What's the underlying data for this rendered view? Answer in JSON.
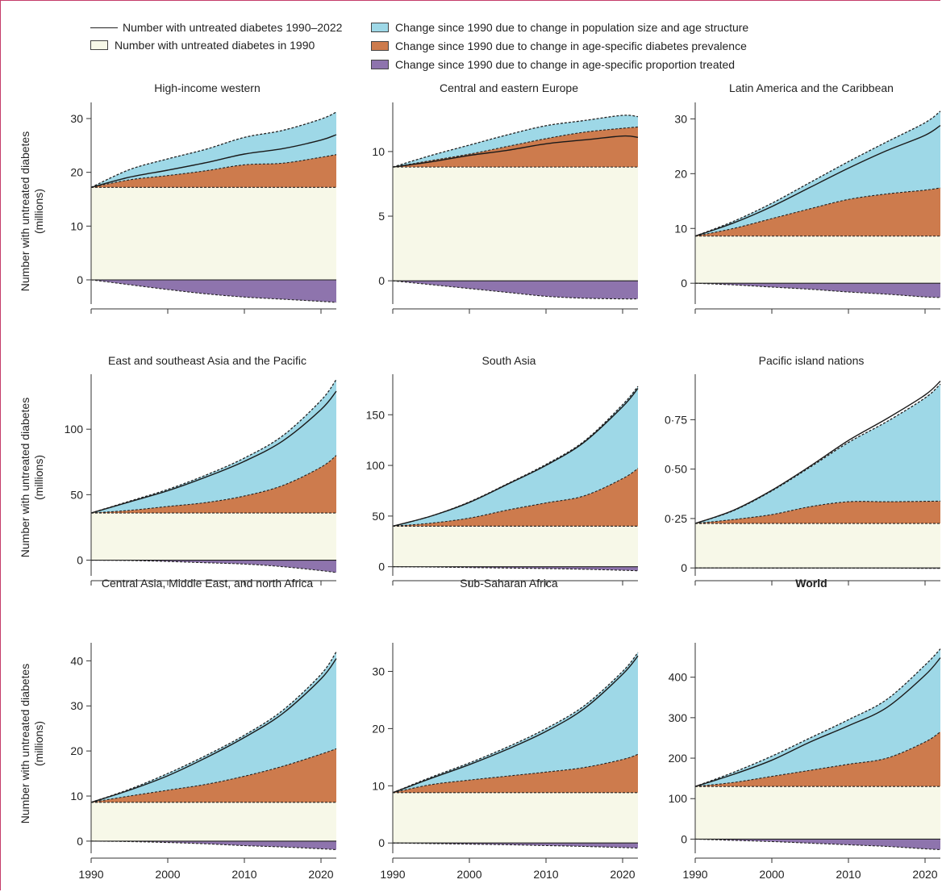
{
  "colors": {
    "baseline": "#f7f8e8",
    "population": "#9ed8e7",
    "prevalence": "#cd7b4d",
    "treated": "#8e74ad",
    "line": "#1a1a1a",
    "frame": "#c43d6a"
  },
  "legend": {
    "line_label": "Number with untreated diabetes 1990–2022",
    "baseline_label": "Number with untreated diabetes in 1990",
    "population_label": "Change since 1990 due to change in population size and age structure",
    "prevalence_label": "Change since 1990 due to change in age-specific diabetes prevalence",
    "treated_label": "Change since 1990 due to change in age-specific proportion treated"
  },
  "y_axis_title": [
    "Number with untreated diabetes",
    "(millions)"
  ],
  "chart_data": [
    {
      "type": "area",
      "title": "High-income western",
      "bold": false,
      "ylim": [
        -4.5,
        33
      ],
      "yticks": [
        0,
        10,
        20,
        30
      ],
      "ytick_labels": [
        "0",
        "10",
        "20",
        "30"
      ],
      "xlim": [
        1990,
        2022
      ],
      "xticks": [
        1990,
        2000,
        2010,
        2020
      ],
      "xtick_labels": [],
      "years": [
        1990,
        1995,
        2000,
        2005,
        2010,
        2015,
        2020,
        2022
      ],
      "baseline": 17.2,
      "prevalence_top": [
        17.2,
        18.6,
        19.4,
        20.3,
        21.4,
        21.7,
        22.8,
        23.3
      ],
      "total_top": [
        17.2,
        20.5,
        22.5,
        24.3,
        26.5,
        27.8,
        29.9,
        31.2
      ],
      "treated_bottom": [
        0,
        -0.9,
        -1.8,
        -2.6,
        -3.2,
        -3.6,
        -4.0,
        -4.2
      ],
      "untreated_line": [
        17.2,
        19.1,
        20.4,
        21.8,
        23.4,
        24.4,
        26.0,
        27.0
      ]
    },
    {
      "type": "area",
      "title": "Central and eastern Europe",
      "bold": false,
      "ylim": [
        -1.8,
        13.8
      ],
      "yticks": [
        0,
        5,
        10
      ],
      "ytick_labels": [
        "0",
        "5",
        "10"
      ],
      "xlim": [
        1990,
        2022
      ],
      "xticks": [
        1990,
        2000,
        2010,
        2020
      ],
      "xtick_labels": [],
      "years": [
        1990,
        1995,
        2000,
        2005,
        2010,
        2015,
        2020,
        2022
      ],
      "baseline": 8.8,
      "prevalence_top": [
        8.8,
        9.3,
        9.8,
        10.4,
        11.0,
        11.5,
        11.8,
        11.9
      ],
      "total_top": [
        8.8,
        9.7,
        10.5,
        11.3,
        12.0,
        12.4,
        12.8,
        12.7
      ],
      "treated_bottom": [
        0,
        -0.3,
        -0.6,
        -0.9,
        -1.2,
        -1.35,
        -1.4,
        -1.4
      ],
      "untreated_line": [
        8.8,
        9.2,
        9.7,
        10.1,
        10.6,
        10.9,
        11.2,
        11.1
      ]
    },
    {
      "type": "area",
      "title": "Latin America and the Caribbean",
      "bold": false,
      "ylim": [
        -3.8,
        33
      ],
      "yticks": [
        0,
        10,
        20,
        30
      ],
      "ytick_labels": [
        "0",
        "10",
        "20",
        "30"
      ],
      "xlim": [
        1990,
        2022
      ],
      "xticks": [
        1990,
        2000,
        2010,
        2020
      ],
      "xtick_labels": [],
      "years": [
        1990,
        1995,
        2000,
        2005,
        2010,
        2015,
        2020,
        2022
      ],
      "baseline": 8.6,
      "prevalence_top": [
        8.6,
        10.0,
        11.8,
        13.6,
        15.3,
        16.3,
        17.0,
        17.4
      ],
      "total_top": [
        8.6,
        11.3,
        14.6,
        18.4,
        22.2,
        25.8,
        29.3,
        31.4
      ],
      "treated_bottom": [
        0,
        -0.3,
        -0.7,
        -1.1,
        -1.6,
        -2.0,
        -2.5,
        -2.6
      ],
      "untreated_line": [
        8.6,
        11.0,
        14.0,
        17.5,
        21.0,
        24.2,
        27.0,
        28.8
      ]
    },
    {
      "type": "area",
      "title": "East and southeast Asia and the Pacific",
      "bold": false,
      "ylim": [
        -12,
        142
      ],
      "yticks": [
        0,
        50,
        100
      ],
      "ytick_labels": [
        "0",
        "50",
        "100"
      ],
      "xlim": [
        1990,
        2022
      ],
      "xticks": [
        1990,
        2000,
        2010,
        2020
      ],
      "xtick_labels": [],
      "years": [
        1990,
        1995,
        2000,
        2005,
        2010,
        2015,
        2020,
        2022
      ],
      "baseline": 36,
      "prevalence_top": [
        36,
        38,
        41,
        44,
        49,
        57,
        71,
        80
      ],
      "total_top": [
        36,
        45,
        54,
        65,
        78,
        95,
        122,
        138
      ],
      "treated_bottom": [
        0,
        -0.3,
        -1,
        -2,
        -3,
        -5,
        -8,
        -9.5
      ],
      "untreated_line": [
        36,
        44.5,
        53,
        63.5,
        75.5,
        91,
        115,
        129
      ]
    },
    {
      "type": "area",
      "title": "South Asia",
      "bold": false,
      "ylim": [
        -9,
        190
      ],
      "yticks": [
        0,
        50,
        100,
        150
      ],
      "ytick_labels": [
        "0",
        "50",
        "100",
        "150"
      ],
      "xlim": [
        1990,
        2022
      ],
      "xticks": [
        1990,
        2000,
        2010,
        2020
      ],
      "xtick_labels": [],
      "years": [
        1990,
        1995,
        2000,
        2005,
        2010,
        2015,
        2020,
        2022
      ],
      "baseline": 40,
      "prevalence_top": [
        40,
        43,
        48,
        56,
        63,
        70,
        87,
        97
      ],
      "total_top": [
        40,
        50,
        64,
        82,
        101,
        124,
        160,
        178
      ],
      "treated_bottom": [
        0,
        -0.3,
        -0.8,
        -1.3,
        -1.8,
        -2.5,
        -3.5,
        -4
      ],
      "untreated_line": [
        40,
        50,
        63.5,
        81.5,
        100,
        123,
        158,
        176
      ]
    },
    {
      "type": "area",
      "title": "Pacific island nations",
      "bold": false,
      "ylim": [
        -0.04,
        0.98
      ],
      "yticks": [
        0,
        0.25,
        0.5,
        0.75
      ],
      "ytick_labels": [
        "0",
        "0·25",
        "0·50",
        "0·75"
      ],
      "xlim": [
        1990,
        2022
      ],
      "xticks": [
        1990,
        2000,
        2010,
        2020
      ],
      "xtick_labels": [],
      "years": [
        1990,
        1995,
        2000,
        2005,
        2010,
        2015,
        2020,
        2022
      ],
      "baseline": 0.225,
      "prevalence_top": [
        0.225,
        0.245,
        0.27,
        0.31,
        0.335,
        0.335,
        0.337,
        0.338
      ],
      "total_top": [
        0.225,
        0.29,
        0.39,
        0.51,
        0.635,
        0.74,
        0.86,
        0.93
      ],
      "treated_bottom": [
        0,
        0,
        -0.001,
        -0.001,
        -0.001,
        -0.001,
        -0.002,
        -0.002
      ],
      "untreated_line": [
        0.225,
        0.292,
        0.393,
        0.515,
        0.645,
        0.755,
        0.875,
        0.945
      ]
    },
    {
      "type": "area",
      "title": "Central Asia, Middle East, and north Africa",
      "bold": false,
      "ylim": [
        -2.7,
        44
      ],
      "yticks": [
        0,
        10,
        20,
        30,
        40
      ],
      "ytick_labels": [
        "0",
        "10",
        "20",
        "30",
        "40"
      ],
      "xlim": [
        1990,
        2022
      ],
      "xticks": [
        1990,
        2000,
        2010,
        2020
      ],
      "xtick_labels": [
        "1990",
        "2000",
        "2010",
        "2020"
      ],
      "years": [
        1990,
        1995,
        2000,
        2005,
        2010,
        2015,
        2020,
        2022
      ],
      "baseline": 8.6,
      "prevalence_top": [
        8.6,
        10.0,
        11.3,
        12.6,
        14.4,
        16.6,
        19.3,
        20.5
      ],
      "total_top": [
        8.6,
        11.5,
        15.0,
        19.0,
        23.5,
        29.0,
        37.0,
        42.0
      ],
      "treated_bottom": [
        0,
        -0.1,
        -0.3,
        -0.6,
        -1.0,
        -1.3,
        -1.7,
        -1.9
      ],
      "untreated_line": [
        8.6,
        11.3,
        14.5,
        18.5,
        23.0,
        28.3,
        36.0,
        40.5
      ]
    },
    {
      "type": "area",
      "title": "Sub-Saharan Africa",
      "bold": false,
      "ylim": [
        -1.8,
        35
      ],
      "yticks": [
        0,
        10,
        20,
        30
      ],
      "ytick_labels": [
        "0",
        "10",
        "20",
        "30"
      ],
      "xlim": [
        1990,
        2022
      ],
      "xticks": [
        1990,
        2000,
        2010,
        2020
      ],
      "xtick_labels": [
        "1990",
        "2000",
        "2010",
        "2020"
      ],
      "years": [
        1990,
        1995,
        2000,
        2005,
        2010,
        2015,
        2020,
        2022
      ],
      "baseline": 8.8,
      "prevalence_top": [
        8.8,
        10.2,
        11.0,
        11.7,
        12.4,
        13.2,
        14.6,
        15.5
      ],
      "total_top": [
        8.8,
        11.5,
        14.0,
        16.8,
        20.0,
        24.0,
        30.0,
        33.3
      ],
      "treated_bottom": [
        0,
        -0.1,
        -0.2,
        -0.3,
        -0.45,
        -0.6,
        -0.8,
        -0.9
      ],
      "untreated_line": [
        8.8,
        11.3,
        13.7,
        16.4,
        19.5,
        23.5,
        29.5,
        32.7
      ]
    },
    {
      "type": "area",
      "title": "World",
      "bold": true,
      "ylim": [
        -35,
        485
      ],
      "yticks": [
        0,
        100,
        200,
        300,
        400
      ],
      "ytick_labels": [
        "0",
        "100",
        "200",
        "300",
        "400"
      ],
      "xlim": [
        1990,
        2022
      ],
      "xticks": [
        1990,
        2000,
        2010,
        2020
      ],
      "xtick_labels": [
        "1990",
        "2000",
        "2010",
        "2020"
      ],
      "years": [
        1990,
        1995,
        2000,
        2005,
        2010,
        2015,
        2020,
        2022
      ],
      "baseline": 130,
      "prevalence_top": [
        130,
        140,
        155,
        170,
        185,
        200,
        240,
        265
      ],
      "total_top": [
        130,
        165,
        205,
        250,
        295,
        345,
        430,
        470
      ],
      "treated_bottom": [
        0,
        -3,
        -6,
        -10,
        -14,
        -18,
        -24,
        -26
      ],
      "untreated_line": [
        130,
        160,
        195,
        240,
        280,
        325,
        405,
        448
      ]
    }
  ]
}
